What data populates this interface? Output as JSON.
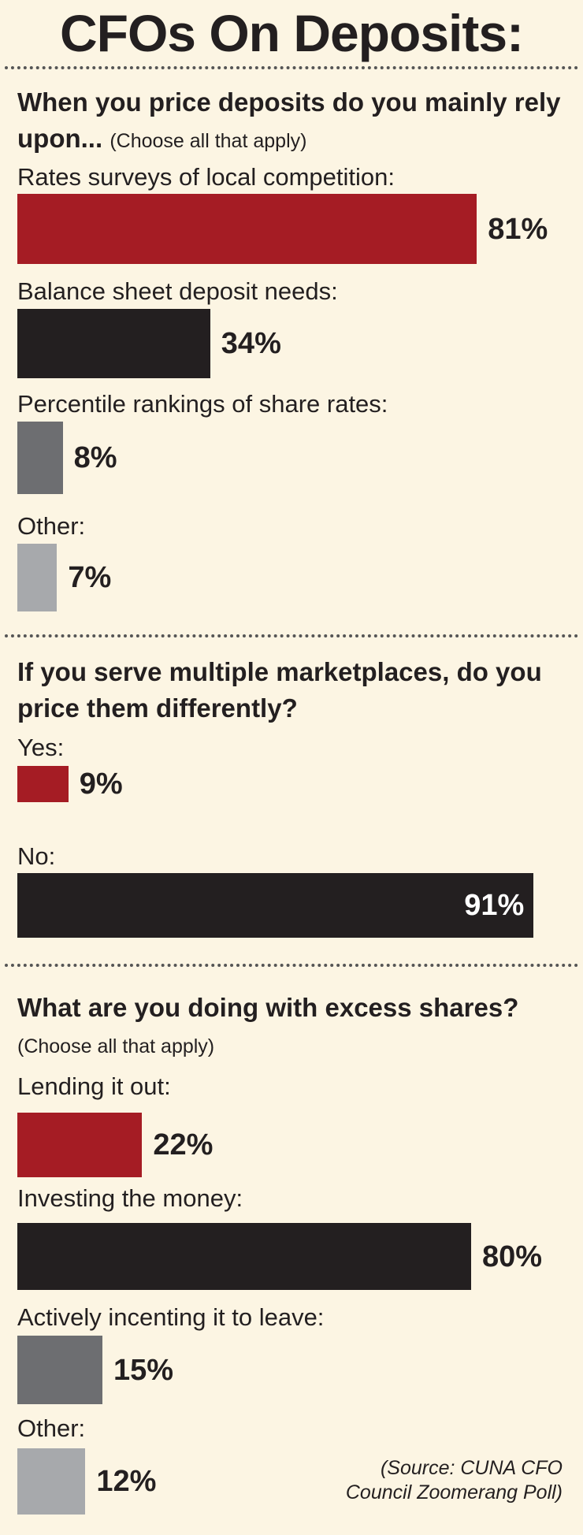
{
  "title": "CFOs On Deposits:",
  "source": "(Source: CUNA CFO Council Zoomerang Poll)",
  "chart_data": [
    {
      "type": "bar",
      "title": "When you price deposits do you mainly rely upon...",
      "subtitle": "(Choose all that apply)",
      "categories": [
        "Rates surveys of local competition:",
        "Balance sheet deposit needs:",
        "Percentile rankings of share rates:",
        "Other:"
      ],
      "values": [
        81,
        34,
        8,
        7
      ],
      "value_labels": [
        "81%",
        "34%",
        "8%",
        "7%"
      ],
      "colors": [
        "#a51c24",
        "#231f20",
        "#6d6e71",
        "#a7a9ac"
      ]
    },
    {
      "type": "bar",
      "title": "If you serve multiple marketplaces, do you price them differently?",
      "categories": [
        "Yes:",
        "No:"
      ],
      "values": [
        9,
        91
      ],
      "value_labels": [
        "9%",
        "91%"
      ],
      "colors": [
        "#a51c24",
        "#231f20"
      ]
    },
    {
      "type": "bar",
      "title": "What are you doing with excess shares?",
      "subtitle": "(Choose all that apply)",
      "categories": [
        "Lending it out:",
        "Investing the money:",
        "Actively incenting it to leave:",
        "Other:"
      ],
      "values": [
        22,
        80,
        15,
        12
      ],
      "value_labels": [
        "22%",
        "80%",
        "15%",
        "12%"
      ],
      "colors": [
        "#a51c24",
        "#231f20",
        "#6d6e71",
        "#a7a9ac"
      ]
    }
  ]
}
